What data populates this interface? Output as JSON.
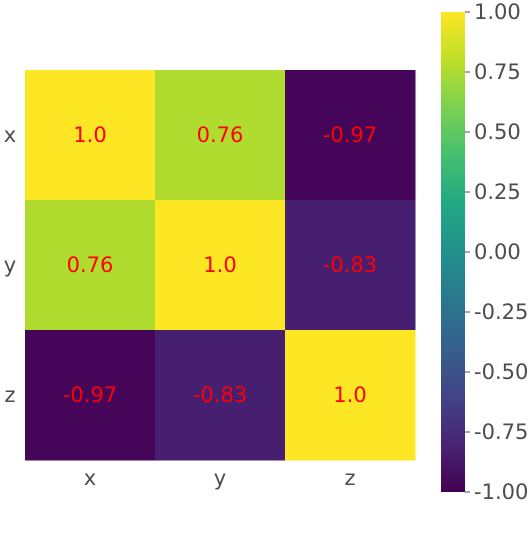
{
  "chart_data": {
    "type": "heatmap",
    "title": "",
    "xlabel": "",
    "ylabel": "",
    "x_categories": [
      "x",
      "y",
      "z"
    ],
    "y_categories": [
      "x",
      "y",
      "z"
    ],
    "values": [
      [
        1.0,
        0.76,
        -0.97
      ],
      [
        0.76,
        1.0,
        -0.83
      ],
      [
        -0.97,
        -0.83,
        1.0
      ]
    ],
    "cell_labels": [
      [
        "1.0",
        "0.76",
        "-0.97"
      ],
      [
        "0.76",
        "1.0",
        "-0.83"
      ],
      [
        "-0.97",
        "-0.83",
        "1.0"
      ]
    ],
    "annotation_color": "#ff0000",
    "colormap": "viridis",
    "vmin": -1.0,
    "vmax": 1.0,
    "grid": false,
    "colorbar": {
      "placement": "right",
      "ticks": [
        1.0,
        0.75,
        0.5,
        0.25,
        0.0,
        -0.25,
        -0.5,
        -0.75,
        -1.0
      ],
      "tick_labels": [
        "1.00",
        "0.75",
        "0.50",
        "0.25",
        "0.00",
        "-0.25",
        "-0.50",
        "-0.75",
        "-1.00"
      ]
    }
  }
}
